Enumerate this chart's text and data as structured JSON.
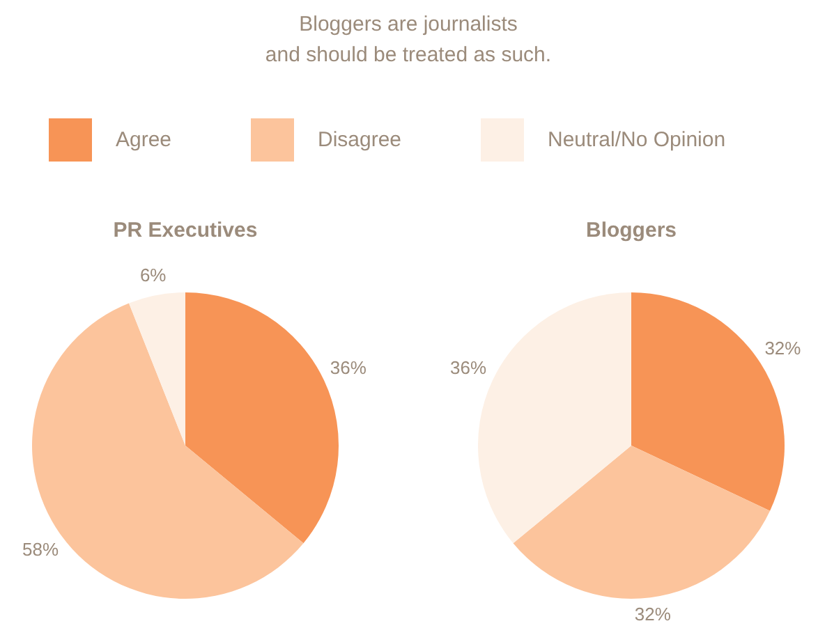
{
  "chart_data": [
    {
      "type": "pie",
      "title": "Bloggers are journalists\nand should be treated as such.",
      "subtitle": "PR Executives",
      "categories": [
        "Agree",
        "Disagree",
        "Neutral/No Opinion"
      ],
      "values": [
        36,
        58,
        6
      ],
      "value_labels": [
        "36%",
        "58%",
        "6%"
      ],
      "colors": [
        "#f79456",
        "#fcc49c",
        "#fdf0e5"
      ],
      "legend": "top"
    },
    {
      "type": "pie",
      "title": "Bloggers",
      "categories": [
        null,
        null,
        null
      ],
      "values": [
        32,
        32,
        36
      ],
      "value_labels": [
        "32%",
        "32%",
        "36%"
      ],
      "colors": [
        "#f79456",
        "#fcc49c",
        "#fdf0e5"
      ]
    }
  ]
}
